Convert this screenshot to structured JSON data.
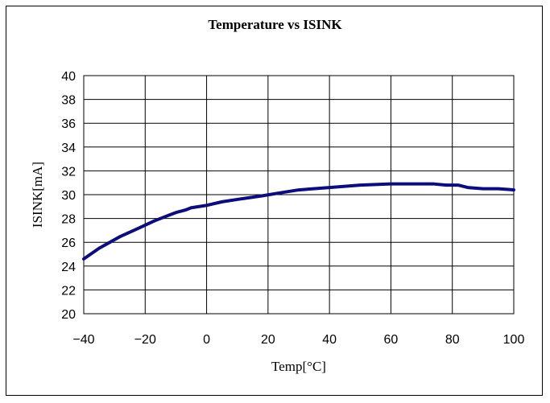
{
  "chart_data": {
    "type": "line",
    "title": "Temperature vs ISINK",
    "xlabel": "Temp[°C]",
    "ylabel": "ISINK[mA]",
    "xlim": [
      -40,
      100
    ],
    "ylim": [
      20,
      40
    ],
    "x_ticks": [
      -40,
      -20,
      0,
      20,
      40,
      60,
      80,
      100
    ],
    "x_tick_labels": [
      "−40",
      "−20",
      "0",
      "20",
      "40",
      "60",
      "80",
      "100"
    ],
    "y_ticks": [
      20,
      22,
      24,
      26,
      28,
      30,
      32,
      34,
      36,
      38,
      40
    ],
    "grid": true,
    "series": [
      {
        "color": "#0c0c7a",
        "x": [
          -40,
          -35,
          -28,
          -22,
          -17,
          -12,
          -10,
          -7,
          -5,
          0,
          5,
          10,
          18,
          25,
          30,
          40,
          50,
          60,
          65,
          70,
          74,
          78,
          82,
          85,
          90,
          95,
          100
        ],
        "y": [
          24.6,
          25.5,
          26.5,
          27.2,
          27.8,
          28.3,
          28.5,
          28.7,
          28.9,
          29.1,
          29.4,
          29.6,
          29.9,
          30.2,
          30.4,
          30.6,
          30.8,
          30.9,
          30.9,
          30.9,
          30.9,
          30.8,
          30.8,
          30.6,
          30.5,
          30.5,
          30.4
        ]
      }
    ]
  }
}
